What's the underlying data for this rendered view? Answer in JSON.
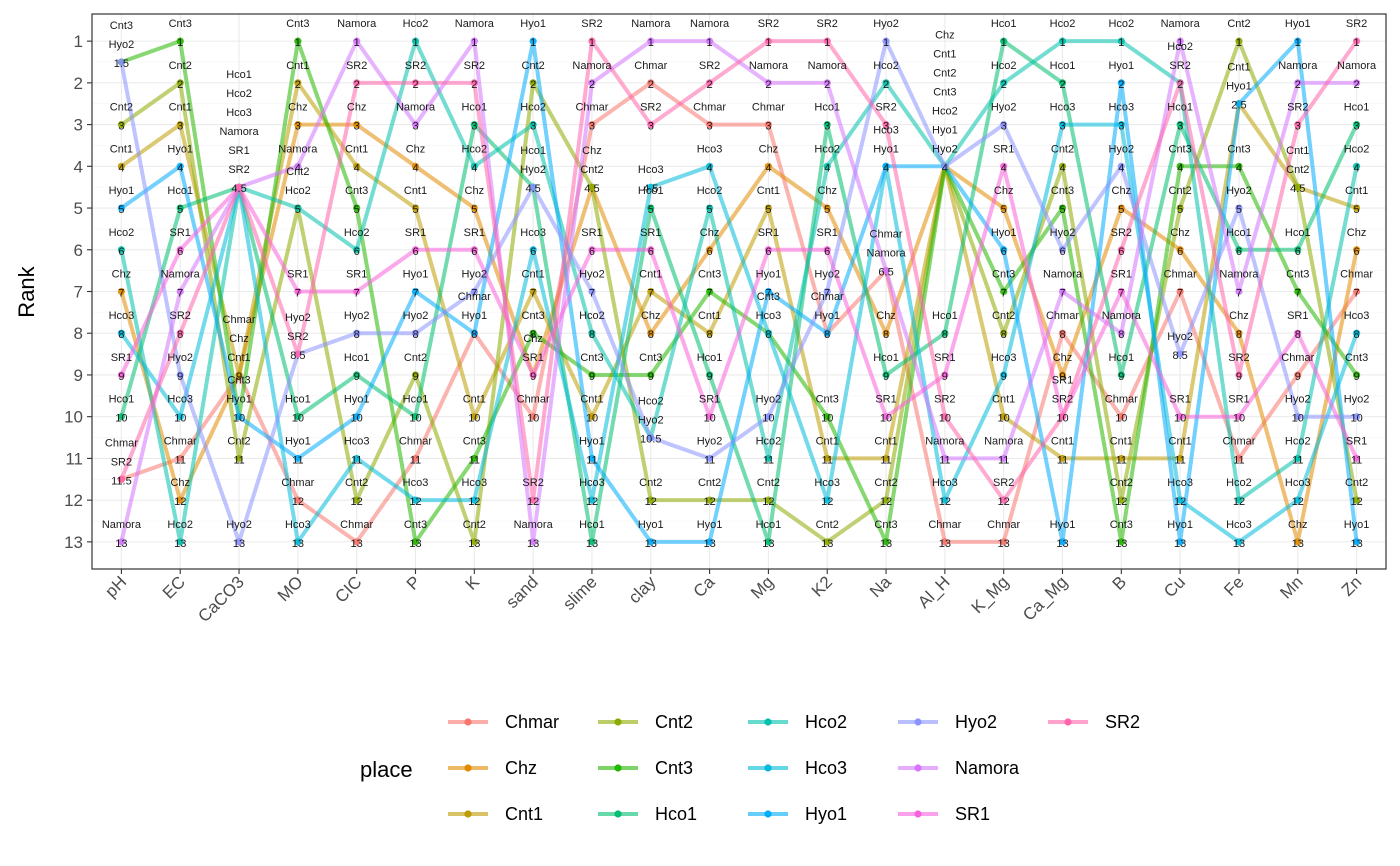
{
  "chart_data": {
    "type": "line",
    "title": "",
    "xlabel": "",
    "ylabel": "Rank",
    "ylim": [
      0.35,
      13.65
    ],
    "y_reversed": true,
    "y_ticks": [
      1,
      2,
      3,
      4,
      5,
      6,
      7,
      8,
      9,
      10,
      11,
      12,
      13
    ],
    "grid": true,
    "legend": {
      "title": "place",
      "position": "bottom"
    },
    "categories": [
      "pH",
      "EC",
      "CaCO3",
      "MO",
      "CIC",
      "P",
      "K",
      "sand",
      "slime",
      "clay",
      "Ca",
      "Mg",
      "K2",
      "Na",
      "Al_H",
      "K_Mg",
      "Ca_Mg",
      "B",
      "Cu",
      "Fe",
      "Mn",
      "Zn"
    ],
    "series": [
      {
        "name": "Chmar",
        "color": "#F8766D",
        "values": [
          11.5,
          11,
          9,
          12,
          13,
          11,
          8,
          10,
          3,
          2,
          3,
          3,
          8,
          6.5,
          13,
          13,
          8,
          10,
          7,
          11,
          9,
          7
        ]
      },
      {
        "name": "Chz",
        "color": "#E18A00",
        "values": [
          7,
          12,
          9,
          3,
          3,
          4,
          5,
          9,
          4.5,
          8,
          6,
          4,
          5,
          8,
          4,
          5,
          9,
          5,
          6,
          8,
          13,
          6
        ]
      },
      {
        "name": "Cnt1",
        "color": "#BE9C00",
        "values": [
          4,
          3,
          9,
          2,
          4,
          5,
          10,
          7,
          10,
          7,
          8,
          5,
          11,
          11,
          4,
          10,
          11,
          11,
          11,
          2.5,
          4.5,
          5
        ]
      },
      {
        "name": "Cnt2",
        "color": "#8CAB00",
        "values": [
          3,
          2,
          11,
          5,
          12,
          9,
          13,
          2,
          4.5,
          12,
          12,
          12,
          13,
          12,
          4,
          8,
          4,
          12,
          5,
          1,
          4.5,
          12
        ]
      },
      {
        "name": "Cnt3",
        "color": "#24B700",
        "values": [
          1.5,
          1,
          10,
          1,
          5,
          13,
          11,
          8,
          9,
          9,
          7,
          8,
          10,
          13,
          4,
          7,
          5,
          13,
          4,
          4,
          7,
          9
        ]
      },
      {
        "name": "Hco1",
        "color": "#00BE70",
        "values": [
          10,
          5,
          4.5,
          10,
          9,
          10,
          3,
          4.5,
          13,
          5,
          9,
          13,
          3,
          9,
          8,
          1,
          2,
          9,
          3,
          6,
          6,
          3
        ]
      },
      {
        "name": "Hco2",
        "color": "#00C1AB",
        "values": [
          6,
          13,
          4.5,
          5,
          6,
          1,
          4,
          3,
          8,
          10.5,
          5,
          11,
          4,
          2,
          4,
          2,
          1,
          1,
          2,
          12,
          11,
          4
        ]
      },
      {
        "name": "Hco3",
        "color": "#00BBDA",
        "values": [
          8,
          10,
          4.5,
          13,
          11,
          12,
          12,
          6,
          12,
          4.5,
          4,
          8,
          12,
          4,
          12,
          9,
          3,
          3,
          12,
          13,
          12,
          8
        ]
      },
      {
        "name": "Hyo1",
        "color": "#00ACFC",
        "values": [
          5,
          4,
          10,
          11,
          10,
          7,
          8,
          1,
          11,
          13,
          13,
          7,
          8,
          4,
          4,
          6,
          13,
          2,
          13,
          2.5,
          1,
          13
        ]
      },
      {
        "name": "Hyo2",
        "color": "#8B93FF",
        "values": [
          1.5,
          9,
          13,
          8.5,
          8,
          8,
          7,
          4.5,
          7,
          10.5,
          11,
          10,
          7,
          1,
          4,
          3,
          6,
          4,
          8.5,
          5,
          10,
          10
        ]
      },
      {
        "name": "Namora",
        "color": "#D575FE",
        "values": [
          13,
          7,
          4.5,
          4,
          1,
          3,
          1,
          13,
          2,
          1,
          1,
          2,
          2,
          6.5,
          11,
          11,
          7,
          8,
          1,
          7,
          2,
          2
        ]
      },
      {
        "name": "SR1",
        "color": "#F962DD",
        "values": [
          9,
          6,
          4.5,
          7,
          7,
          6,
          6,
          9,
          6,
          6,
          10,
          6,
          6,
          10,
          9,
          4,
          10,
          7,
          10,
          10,
          8,
          11
        ]
      },
      {
        "name": "SR2",
        "color": "#FF65AC",
        "values": [
          11.5,
          8,
          4.5,
          8.5,
          2,
          2,
          2,
          12,
          1,
          3,
          2,
          1,
          1,
          3,
          10,
          12,
          10,
          6,
          2,
          9,
          3,
          1
        ]
      }
    ]
  }
}
